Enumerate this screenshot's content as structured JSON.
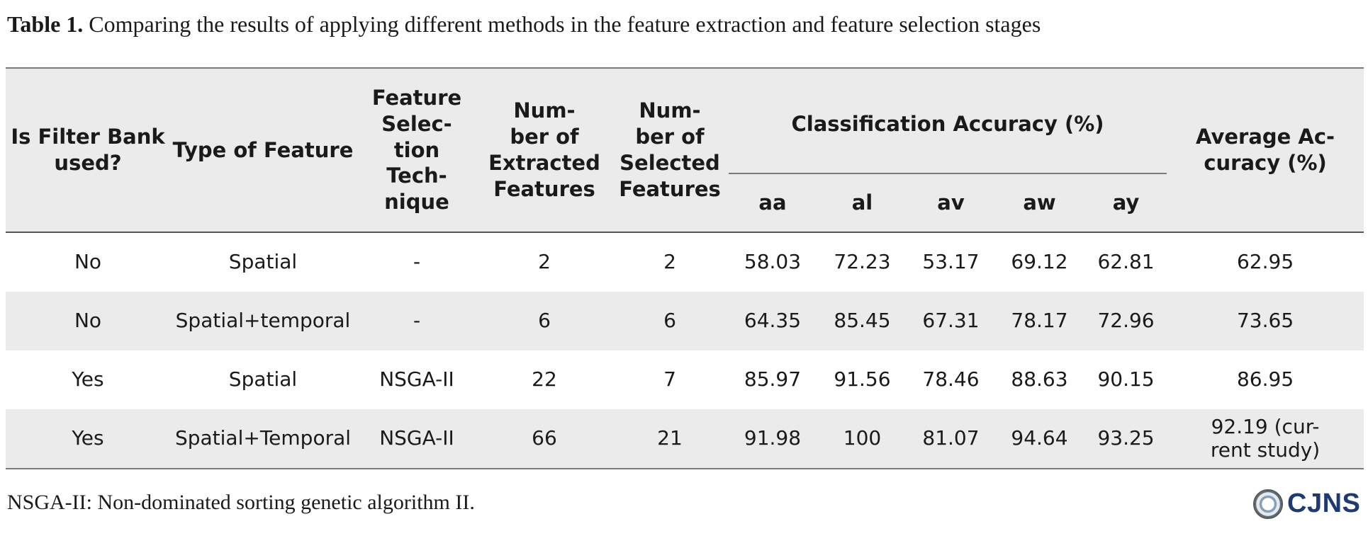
{
  "caption": {
    "label": "Table 1.",
    "text": " Comparing the results of applying different methods in the feature extraction and feature selection stages"
  },
  "headers": {
    "filter_bank": [
      "Is Filter Bank",
      "used?"
    ],
    "type_of_feature": "Type of Feature",
    "fs_technique": [
      "Feature",
      "Selec-",
      "tion",
      "Tech-",
      "nique"
    ],
    "num_extracted": [
      "Num-",
      "ber of",
      "Extracted",
      "Features"
    ],
    "num_selected": [
      "Num-",
      "ber of",
      "Selected",
      "Features"
    ],
    "classification_accuracy": "Classification Accuracy (%)",
    "subjects": [
      "aa",
      "al",
      "av",
      "aw",
      "ay"
    ],
    "average_accuracy": [
      "Average Ac-",
      "curacy (%)"
    ]
  },
  "rows": [
    {
      "filter_bank": "No",
      "type": "Spatial",
      "technique": "-",
      "extracted": "2",
      "selected": "2",
      "aa": "58.03",
      "al": "72.23",
      "av": "53.17",
      "aw": "69.12",
      "ay": "62.81",
      "average": [
        "62.95"
      ]
    },
    {
      "filter_bank": "No",
      "type": "Spatial+temporal",
      "technique": "-",
      "extracted": "6",
      "selected": "6",
      "aa": "64.35",
      "al": "85.45",
      "av": "67.31",
      "aw": "78.17",
      "ay": "72.96",
      "average": [
        "73.65"
      ]
    },
    {
      "filter_bank": "Yes",
      "type": "Spatial",
      "technique": "NSGA-II",
      "extracted": "22",
      "selected": "7",
      "aa": "85.97",
      "al": "91.56",
      "av": "78.46",
      "aw": "88.63",
      "ay": "90.15",
      "average": [
        "86.95"
      ]
    },
    {
      "filter_bank": "Yes",
      "type": "Spatial+Temporal",
      "technique": "NSGA-II",
      "extracted": "66",
      "selected": "21",
      "aa": "91.98",
      "al": "100",
      "av": "81.07",
      "aw": "94.64",
      "ay": "93.25",
      "average": [
        "92.19 (cur-",
        "rent study)"
      ]
    }
  ],
  "footnote": "NSGA-II: Non-dominated sorting genetic algorithm II.",
  "logo": {
    "text": "CJNS",
    "icon": "journal-seal-icon",
    "color": "#1f3a6e"
  }
}
